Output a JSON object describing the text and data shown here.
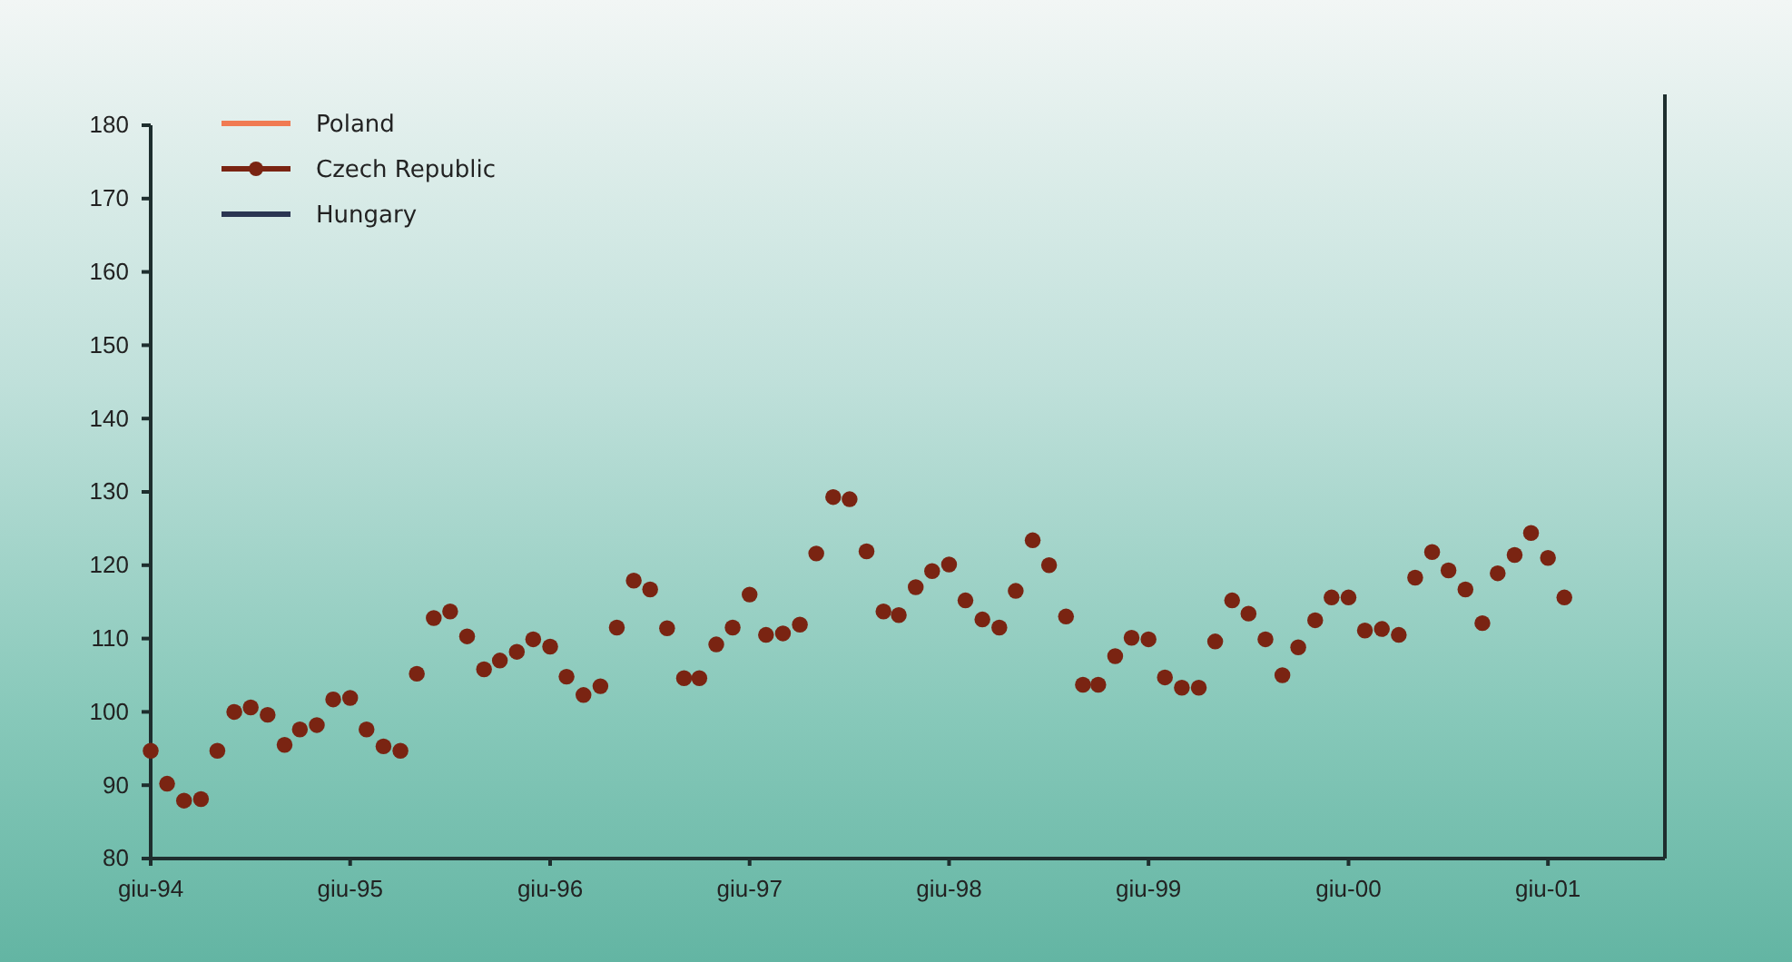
{
  "chart_data": {
    "type": "scatter",
    "legend": "top left",
    "marker": "circle",
    "x": [
      "1994-06",
      "1994-07",
      "1994-08",
      "1994-09",
      "1994-10",
      "1994-11",
      "1994-12",
      "1995-01",
      "1995-02",
      "1995-03",
      "1995-04",
      "1995-05",
      "1995-06",
      "1995-07",
      "1995-08",
      "1995-09",
      "1995-10",
      "1995-11",
      "1995-12",
      "1996-01",
      "1996-02",
      "1996-03",
      "1996-04",
      "1996-05",
      "1996-06",
      "1996-07",
      "1996-08",
      "1996-09",
      "1996-10",
      "1996-11",
      "1996-12",
      "1997-01",
      "1997-02",
      "1997-03",
      "1997-04",
      "1997-05",
      "1997-06",
      "1997-07",
      "1997-08",
      "1997-09",
      "1997-10",
      "1997-11",
      "1997-12",
      "1998-01",
      "1998-02",
      "1998-03",
      "1998-04",
      "1998-05",
      "1998-06",
      "1998-07",
      "1998-08",
      "1998-09",
      "1998-10",
      "1998-11",
      "1998-12",
      "1999-01",
      "1999-02",
      "1999-03",
      "1999-04",
      "1999-05",
      "1999-06",
      "1999-07",
      "1999-08",
      "1999-09",
      "1999-10",
      "1999-11",
      "1999-12",
      "2000-01",
      "2000-02",
      "2000-03",
      "2000-04",
      "2000-05",
      "2000-06",
      "2000-07",
      "2000-08",
      "2000-09",
      "2000-10",
      "2000-11",
      "2000-12",
      "2001-01",
      "2001-02",
      "2001-03",
      "2001-04",
      "2001-05",
      "2001-06",
      "2001-07"
    ],
    "series": [
      {
        "name": "Poland",
        "type": "line",
        "color": "#f07a52",
        "values": [
          null,
          null,
          null,
          null,
          null,
          null,
          null,
          null,
          null,
          null,
          null,
          null,
          null,
          null,
          null,
          null,
          null,
          null,
          null,
          null,
          null,
          null,
          null,
          null,
          null,
          null,
          null,
          null,
          null,
          null,
          null,
          null,
          null,
          null,
          null,
          null,
          null,
          null,
          null,
          null,
          null,
          null,
          null,
          null,
          null,
          null,
          null,
          null,
          null,
          null,
          null,
          null,
          null,
          null,
          null,
          null,
          null,
          null,
          null,
          null,
          null,
          null,
          null,
          null,
          null,
          null,
          null,
          null,
          null,
          null,
          null,
          null,
          null,
          null,
          null,
          null,
          null,
          null,
          null,
          null,
          null,
          null,
          null,
          null,
          null,
          null
        ]
      },
      {
        "name": "Czech Republic",
        "color": "#7a2412",
        "values": [
          94.7,
          90.2,
          87.9,
          88.1,
          94.7,
          100.0,
          100.6,
          99.6,
          95.5,
          97.6,
          98.2,
          101.7,
          101.9,
          97.6,
          95.3,
          94.7,
          105.2,
          112.8,
          113.7,
          110.3,
          105.8,
          107.0,
          108.2,
          109.9,
          108.9,
          104.8,
          102.3,
          103.5,
          111.5,
          117.9,
          116.7,
          111.4,
          104.6,
          104.6,
          109.2,
          111.5,
          116.0,
          110.5,
          110.7,
          111.9,
          121.6,
          129.3,
          129.0,
          121.9,
          113.7,
          113.2,
          117.0,
          119.2,
          120.1,
          115.2,
          112.6,
          111.5,
          116.5,
          123.4,
          120.0,
          113.0,
          103.7,
          103.7,
          107.6,
          110.1,
          109.9,
          104.7,
          103.3,
          103.3,
          109.6,
          115.2,
          113.4,
          109.9,
          105.0,
          108.8,
          112.5,
          115.6,
          115.6,
          111.1,
          111.3,
          110.5,
          118.3,
          121.8,
          119.3,
          116.7,
          112.1,
          118.9,
          121.4,
          124.4,
          121.0,
          115.6
        ]
      },
      {
        "name": "Hungary",
        "type": "line",
        "color": "#2b3552",
        "values": [
          null,
          null,
          null,
          null,
          null,
          null,
          null,
          null,
          null,
          null,
          null,
          null,
          null,
          null,
          null,
          null,
          null,
          null,
          null,
          null,
          null,
          null,
          null,
          null,
          null,
          null,
          null,
          null,
          null,
          null,
          null,
          null,
          null,
          null,
          null,
          null,
          null,
          null,
          null,
          null,
          null,
          null,
          null,
          null,
          null,
          null,
          null,
          null,
          null,
          null,
          null,
          null,
          null,
          null,
          null,
          null,
          null,
          null,
          null,
          null,
          null,
          null,
          null,
          null,
          null,
          null,
          null,
          null,
          null,
          null,
          null,
          null,
          null,
          null,
          null,
          null,
          null,
          null,
          null,
          null,
          null,
          null,
          null,
          null,
          null,
          null
        ]
      }
    ],
    "xlim": [
      "1994-06",
      "2002-01"
    ],
    "xticks": [
      {
        "value": "1994-06",
        "label": "giu-94"
      },
      {
        "value": "1995-06",
        "label": "giu-95"
      },
      {
        "value": "1996-06",
        "label": "giu-96"
      },
      {
        "value": "1997-06",
        "label": "giu-97"
      },
      {
        "value": "1998-06",
        "label": "giu-98"
      },
      {
        "value": "1999-06",
        "label": "giu-99"
      },
      {
        "value": "2000-06",
        "label": "giu-00"
      },
      {
        "value": "2001-06",
        "label": "giu-01"
      }
    ],
    "ylim": [
      80,
      180
    ],
    "yticks": [
      80,
      90,
      100,
      110,
      120,
      130,
      140,
      150,
      160,
      170,
      180
    ]
  }
}
